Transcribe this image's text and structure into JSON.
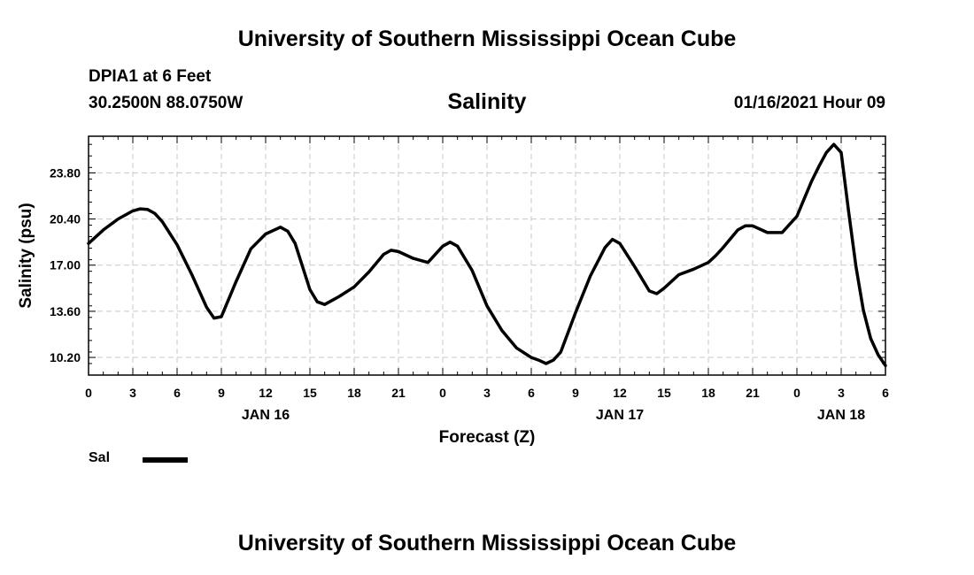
{
  "header": {
    "title": "University of Southern Mississippi Ocean Cube",
    "station": "DPIA1 at 6 Feet",
    "coords": "30.2500N 88.0750W",
    "variable": "Salinity",
    "datetime": "01/16/2021 Hour 09"
  },
  "footer": {
    "title": "University of Southern Mississippi Ocean Cube"
  },
  "legend": {
    "label": "Sal"
  },
  "chart_data": {
    "type": "line",
    "title": "Salinity",
    "xlabel": "Forecast (Z)",
    "ylabel": "Salinity (psu)",
    "xlim": [
      0,
      54
    ],
    "ylim": [
      8.9,
      26.5
    ],
    "x_ticks": [
      0,
      3,
      6,
      9,
      12,
      15,
      18,
      21,
      24,
      27,
      30,
      33,
      36,
      39,
      42,
      45,
      48,
      51,
      54
    ],
    "x_tick_labels": [
      "0",
      "3",
      "6",
      "9",
      "12",
      "15",
      "18",
      "21",
      "0",
      "3",
      "6",
      "9",
      "12",
      "15",
      "18",
      "21",
      "0",
      "3",
      "6"
    ],
    "y_ticks": [
      10.2,
      13.6,
      17.0,
      20.4,
      23.8
    ],
    "y_tick_labels": [
      "10.20",
      "13.60",
      "17.00",
      "20.40",
      "23.80"
    ],
    "date_labels": [
      {
        "x": 12,
        "label": "JAN 16"
      },
      {
        "x": 36,
        "label": "JAN 17"
      },
      {
        "x": 51,
        "label": "JAN 18"
      }
    ],
    "grid": true,
    "series": [
      {
        "name": "Sal",
        "color": "#000000",
        "x": [
          0,
          1,
          2,
          3,
          3.5,
          4,
          4.5,
          5,
          6,
          7,
          8,
          8.5,
          9,
          10,
          11,
          12,
          13,
          13.5,
          14,
          15,
          15.5,
          16,
          17,
          18,
          19,
          20,
          20.5,
          21,
          22,
          23,
          24,
          24.5,
          25,
          26,
          27,
          28,
          29,
          30,
          30.5,
          31,
          31.5,
          32,
          33,
          34,
          35,
          35.5,
          36,
          37,
          38,
          38.5,
          39,
          40,
          41,
          42,
          42.5,
          43,
          44,
          44.5,
          45,
          46,
          47,
          48,
          48.5,
          49,
          49.5,
          50,
          50.5,
          51,
          51.5,
          52,
          52.5,
          53,
          53.5,
          54
        ],
        "values": [
          18.6,
          19.6,
          20.4,
          21.0,
          21.15,
          21.1,
          20.8,
          20.2,
          18.5,
          16.3,
          13.9,
          13.1,
          13.2,
          15.8,
          18.2,
          19.3,
          19.8,
          19.5,
          18.6,
          15.2,
          14.3,
          14.1,
          14.7,
          15.4,
          16.5,
          17.8,
          18.1,
          18.0,
          17.5,
          17.2,
          18.4,
          18.7,
          18.4,
          16.6,
          14.0,
          12.2,
          10.9,
          10.2,
          10.0,
          9.75,
          10.0,
          10.6,
          13.5,
          16.2,
          18.3,
          18.9,
          18.6,
          16.9,
          15.1,
          14.9,
          15.3,
          16.3,
          16.7,
          17.2,
          17.7,
          18.3,
          19.6,
          19.9,
          19.9,
          19.4,
          19.4,
          20.6,
          21.9,
          23.2,
          24.3,
          25.3,
          25.9,
          25.3,
          21.0,
          16.9,
          13.7,
          11.6,
          10.4,
          9.6
        ]
      }
    ]
  }
}
